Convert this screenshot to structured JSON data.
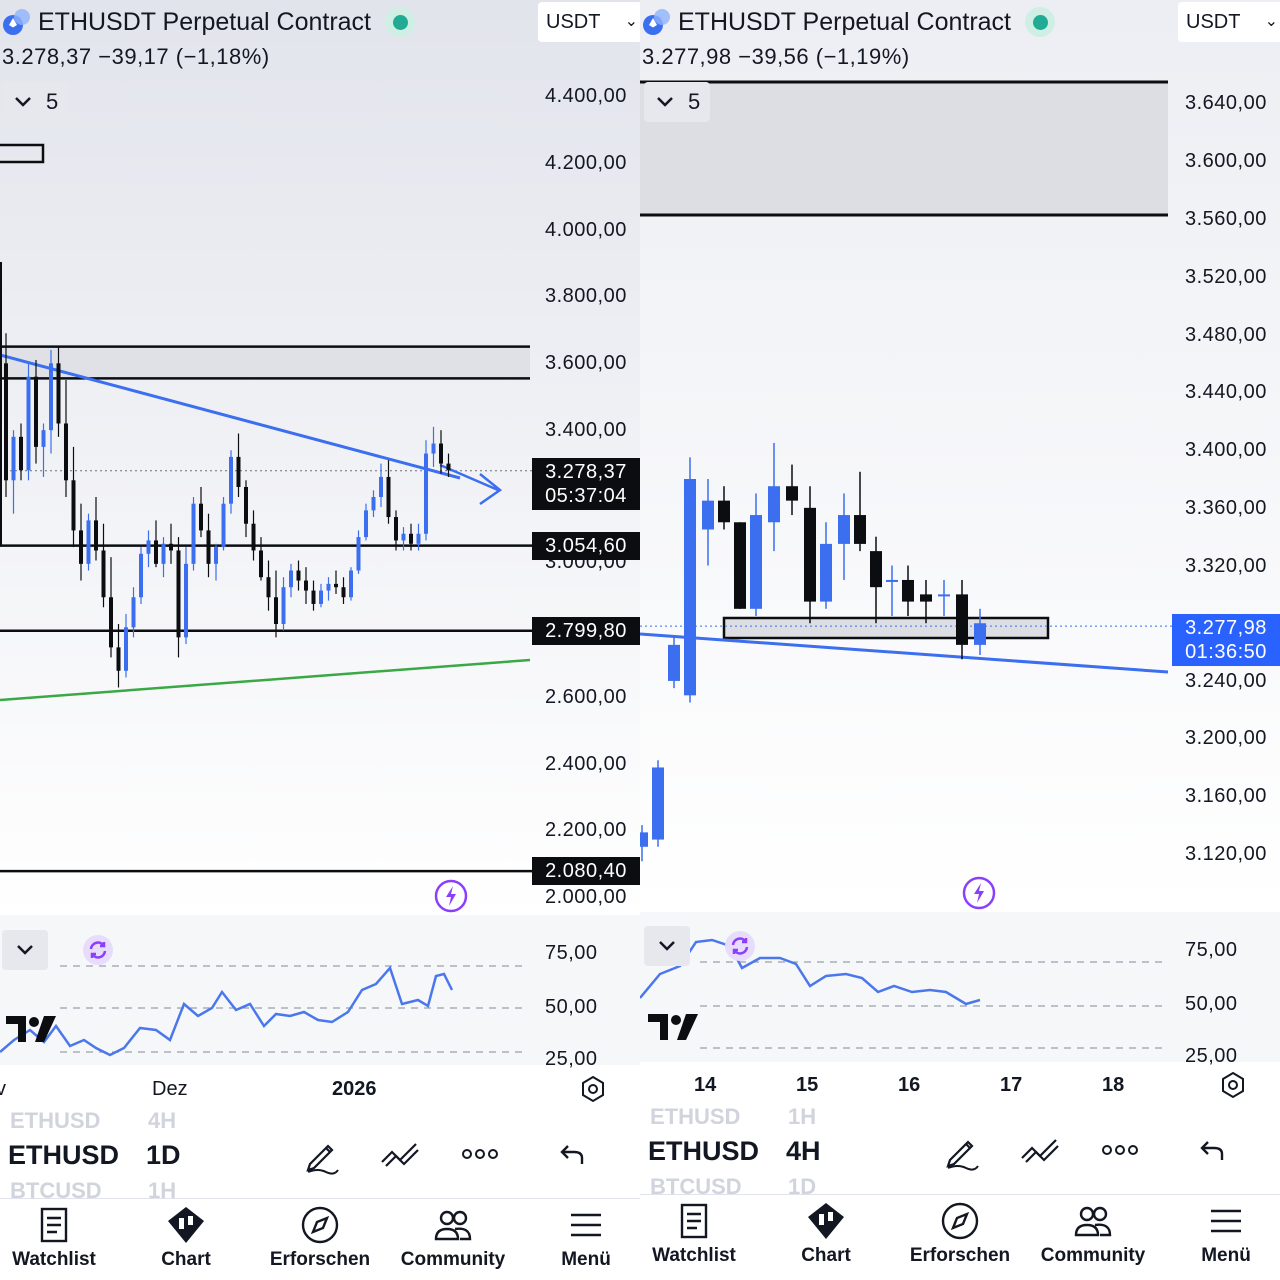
{
  "left": {
    "title": "ETHUSDT Perpetual Contract",
    "currency": "USDT",
    "quote": "3.278,37  −39,17 (−1,18%)",
    "collapse_count": "5",
    "price_axis": [
      "4.400,00",
      "4.200,00",
      "4.000,00",
      "3.800,00",
      "3.600,00",
      "3.400,00",
      "3.000,00",
      "2.600,00",
      "2.400,00",
      "2.200,00",
      "2.000,00"
    ],
    "tags": {
      "last_price": "3.278,37",
      "countdown": "05:37:04",
      "level_1": "3.054,60",
      "level_2": "2.799,80",
      "level_3": "2.080,40"
    },
    "indicator_axis": [
      "75,00",
      "50,00",
      "25,00"
    ],
    "time_axis": [
      "v",
      "Dez",
      "2026"
    ],
    "symbol": "ETHUSD",
    "interval": "1D",
    "ghost_above": [
      "ETHUSD",
      "4H"
    ],
    "ghost_below": [
      "BTCUSD",
      "1H"
    ]
  },
  "right": {
    "title": "ETHUSDT Perpetual Contract",
    "currency": "USDT",
    "quote": "3.277,98  −39,56 (−1,19%)",
    "collapse_count": "5",
    "price_axis": [
      "3.640,00",
      "3.600,00",
      "3.560,00",
      "3.520,00",
      "3.480,00",
      "3.440,00",
      "3.400,00",
      "3.360,00",
      "3.320,00",
      "3.240,00",
      "3.200,00",
      "3.160,00",
      "3.120,00"
    ],
    "tags": {
      "last_price": "3.277,98",
      "countdown": "01:36:50"
    },
    "indicator_axis": [
      "75,00",
      "50,00",
      "25,00"
    ],
    "time_axis": [
      "14",
      "15",
      "16",
      "17",
      "18"
    ],
    "symbol": "ETHUSD",
    "interval": "4H",
    "ghost_above": [
      "ETHUSD",
      "1H"
    ],
    "ghost_below": [
      "BTCUSD",
      "1D"
    ]
  },
  "nav": [
    "Watchlist",
    "Chart",
    "Erforschen",
    "Community",
    "Menü"
  ],
  "colors": {
    "bull": "#3b6ff0",
    "bear": "#0c0d10",
    "trend": "#3b6ff0",
    "support": "#3aa845",
    "zone": "#dfe1e6",
    "indicator": "#4a78ec",
    "accent": "#8a3ffc"
  }
}
